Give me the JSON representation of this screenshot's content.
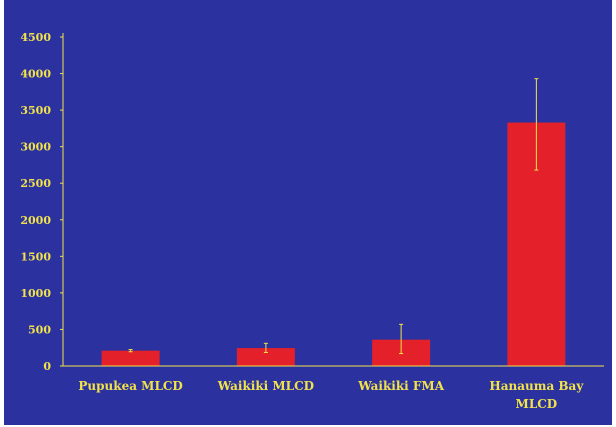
{
  "chart_data": {
    "type": "bar",
    "categories": [
      "Pupukea MLCD",
      "Waikiki MLCD",
      "Waikiki FMA",
      "Hanauma Bay MLCD"
    ],
    "category_lines": [
      [
        "Pupukea MLCD"
      ],
      [
        "Waikiki MLCD"
      ],
      [
        "Waikiki FMA"
      ],
      [
        "Hanauma Bay",
        "MLCD"
      ]
    ],
    "values": [
      210,
      245,
      360,
      3330
    ],
    "error_low": [
      195,
      185,
      170,
      2680
    ],
    "error_high": [
      225,
      310,
      570,
      3930
    ],
    "yticks": [
      0,
      500,
      1000,
      1500,
      2000,
      2500,
      3000,
      3500,
      4000,
      4500
    ],
    "ylim": [
      0,
      4500
    ],
    "title": "",
    "xlabel": "",
    "ylabel": "",
    "grid": false,
    "colors": {
      "background": "#2b32a0",
      "bar": "#e4202a",
      "error_bar": "#f2e24a",
      "axis_line": "#f2e24a",
      "text": "#f2e24a"
    }
  }
}
